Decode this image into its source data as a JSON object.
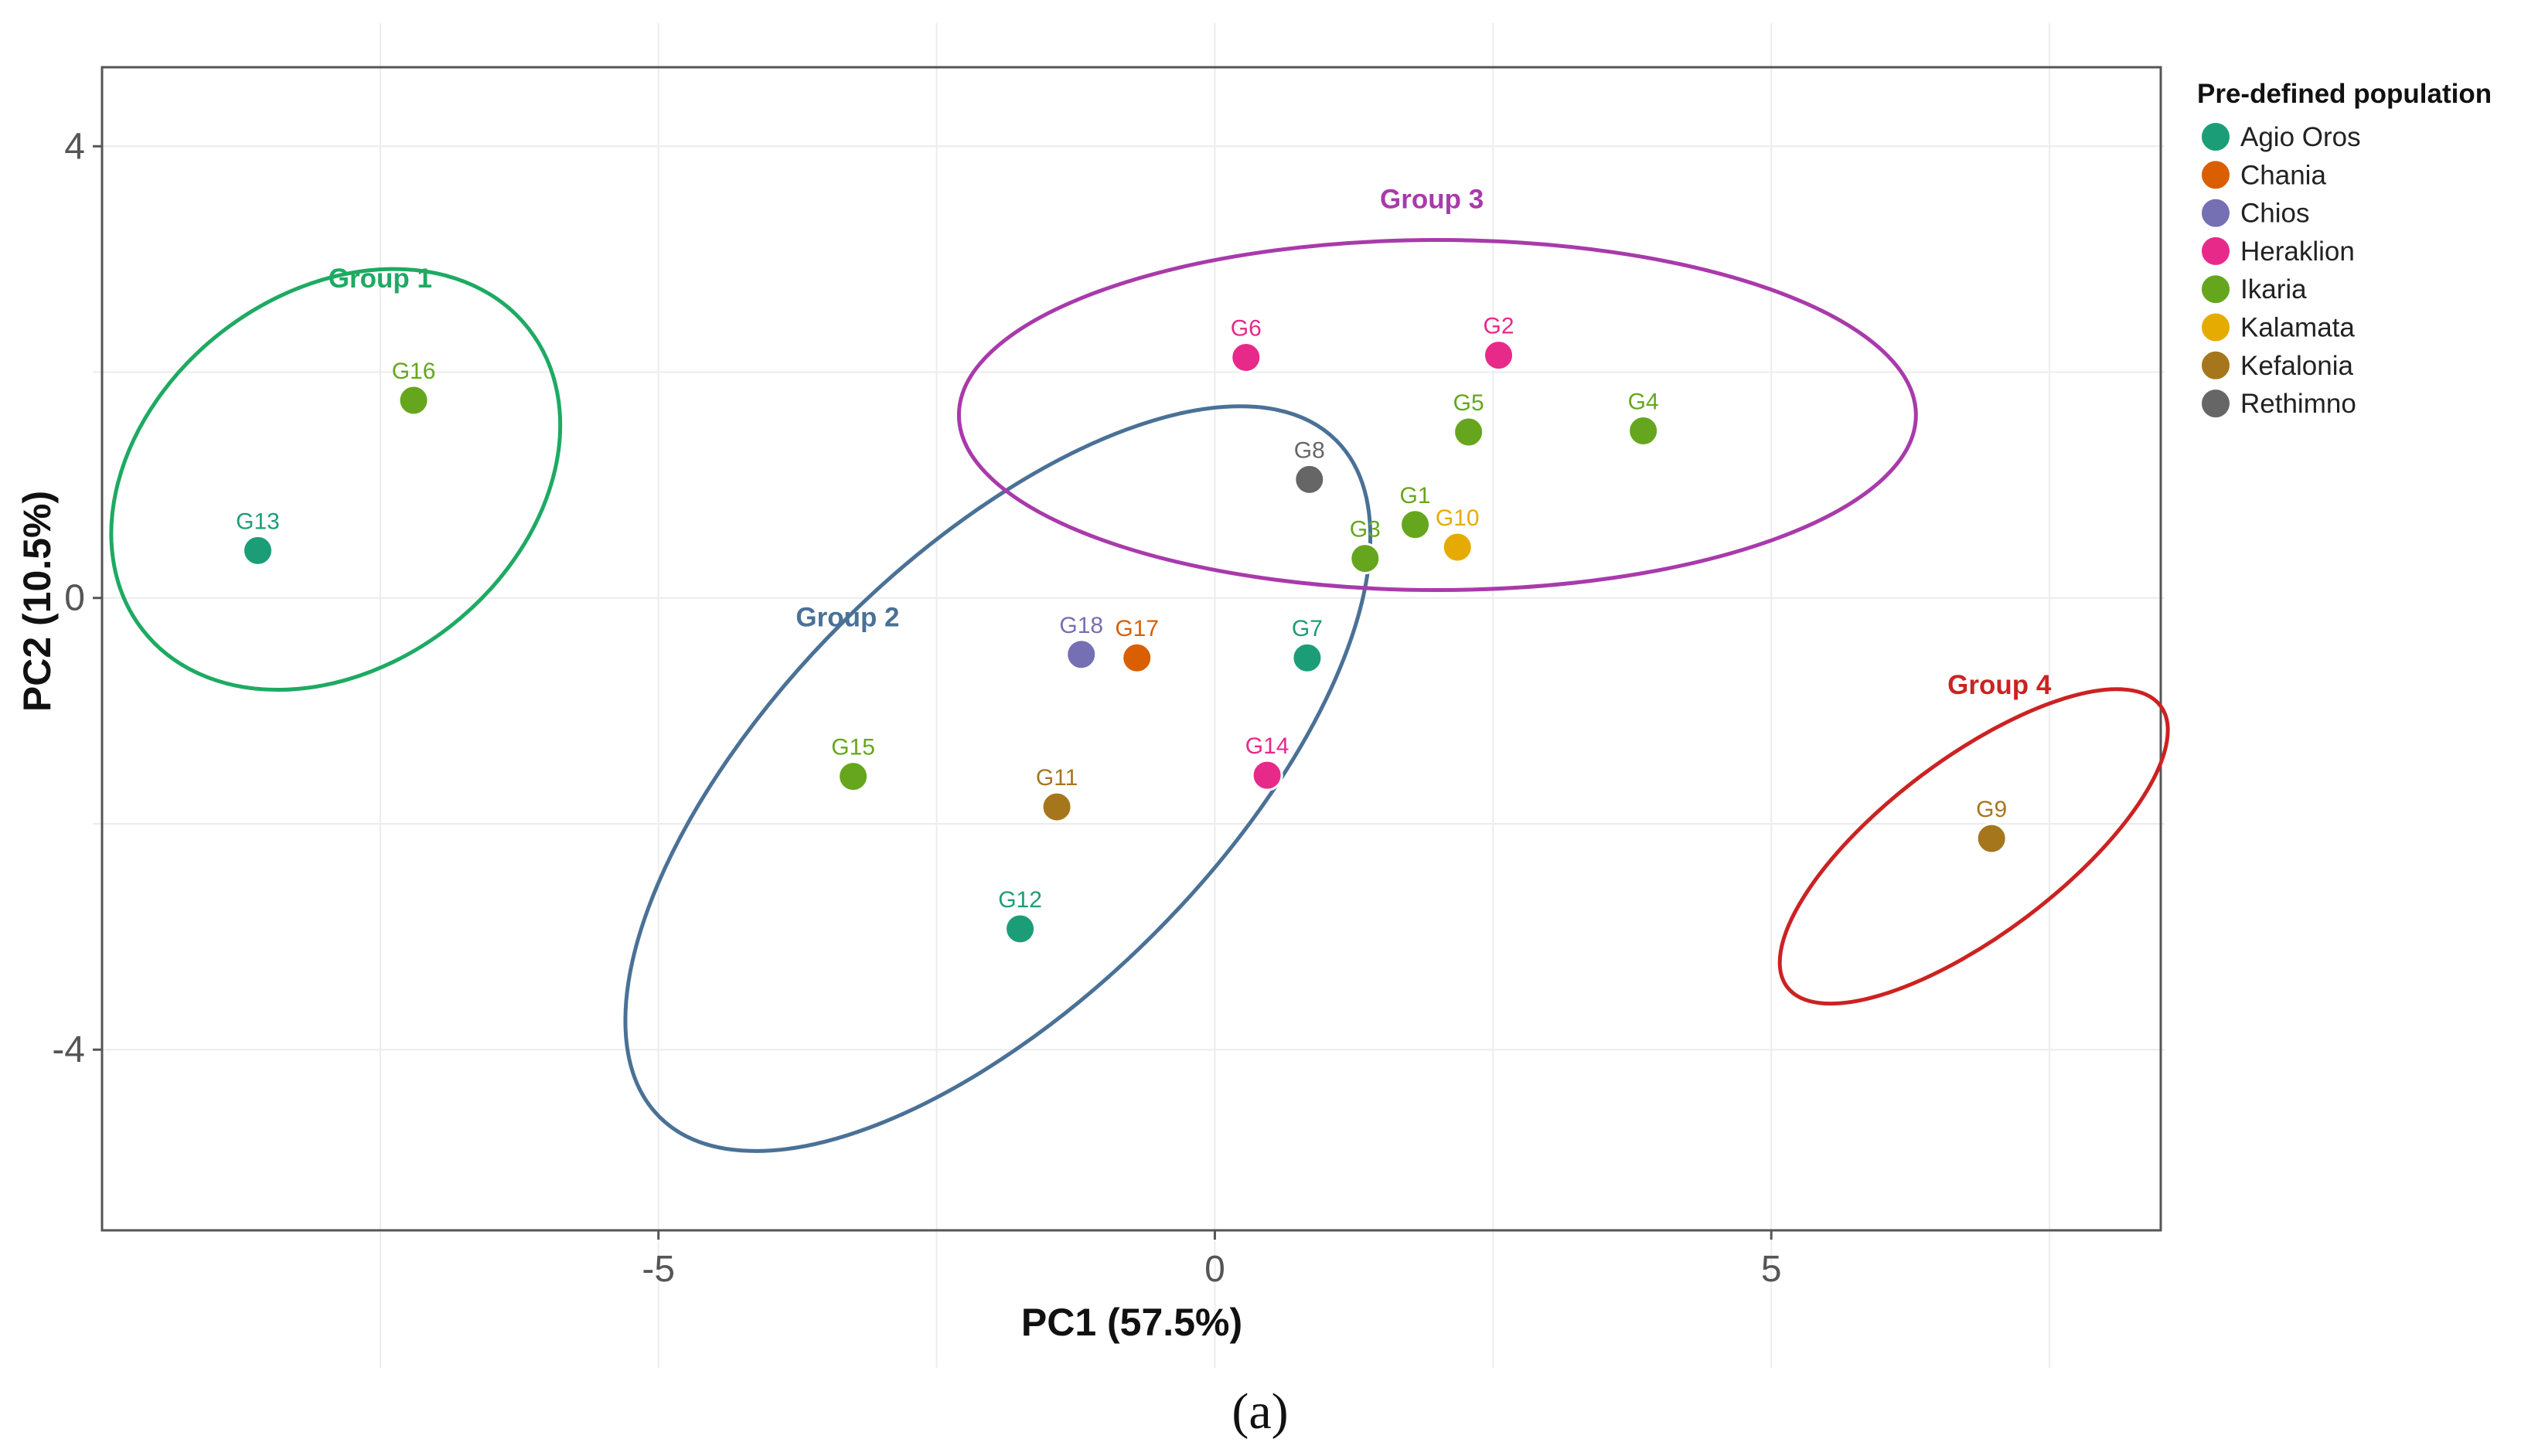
{
  "chart_data": {
    "type": "scatter",
    "xlabel": "PC1 (57.5%)",
    "ylabel": "PC2 (10.5%)",
    "xlim": [
      -10,
      8.5
    ],
    "ylim": [
      -5.6,
      4.7
    ],
    "xticks": [
      -5,
      0,
      5
    ],
    "xtick_labels": [
      "-5",
      "0",
      "5"
    ],
    "yticks": [
      -4,
      0,
      4
    ],
    "ytick_labels": [
      "-4",
      "0",
      "4"
    ],
    "grid": true,
    "legend_title": "Pre-defined population",
    "legend_position": "right",
    "caption": "(a)",
    "populations": [
      {
        "name": "Agio Oros",
        "color": "#1B9E77"
      },
      {
        "name": "Chania",
        "color": "#D95F02"
      },
      {
        "name": "Chios",
        "color": "#7570B3"
      },
      {
        "name": "Heraklion",
        "color": "#E7298A"
      },
      {
        "name": "Ikaria",
        "color": "#66A61E"
      },
      {
        "name": "Kalamata",
        "color": "#E6AB02"
      },
      {
        "name": "Kefalonia",
        "color": "#A6761D"
      },
      {
        "name": "Rethimno",
        "color": "#666666"
      }
    ],
    "points": [
      {
        "label": "G1",
        "population": "Ikaria",
        "x": 1.8,
        "y": 0.65
      },
      {
        "label": "G2",
        "population": "Heraklion",
        "x": 2.55,
        "y": 2.15
      },
      {
        "label": "G3",
        "population": "Ikaria",
        "x": 1.35,
        "y": 0.35
      },
      {
        "label": "G4",
        "population": "Ikaria",
        "x": 3.85,
        "y": 1.48
      },
      {
        "label": "G5",
        "population": "Ikaria",
        "x": 2.28,
        "y": 1.47
      },
      {
        "label": "G6",
        "population": "Heraklion",
        "x": 0.28,
        "y": 2.13
      },
      {
        "label": "G7",
        "population": "Agio Oros",
        "x": 0.83,
        "y": -0.53
      },
      {
        "label": "G8",
        "population": "Rethimno",
        "x": 0.85,
        "y": 1.05
      },
      {
        "label": "G9",
        "population": "Kefalonia",
        "x": 6.98,
        "y": -2.13
      },
      {
        "label": "G10",
        "population": "Kalamata",
        "x": 2.18,
        "y": 0.45
      },
      {
        "label": "G11",
        "population": "Kefalonia",
        "x": -1.42,
        "y": -1.85
      },
      {
        "label": "G12",
        "population": "Agio Oros",
        "x": -1.75,
        "y": -2.93
      },
      {
        "label": "G13",
        "population": "Agio Oros",
        "x": -8.6,
        "y": 0.42
      },
      {
        "label": "G14",
        "population": "Heraklion",
        "x": 0.47,
        "y": -1.57
      },
      {
        "label": "G15",
        "population": "Ikaria",
        "x": -3.25,
        "y": -1.58
      },
      {
        "label": "G16",
        "population": "Ikaria",
        "x": -7.2,
        "y": 1.75
      },
      {
        "label": "G17",
        "population": "Chania",
        "x": -0.7,
        "y": -0.53
      },
      {
        "label": "G18",
        "population": "Chios",
        "x": -1.2,
        "y": -0.5
      }
    ],
    "groups": [
      {
        "name": "Group 1",
        "color": "#1DAA62",
        "cx": -7.9,
        "cy": 1.05,
        "rx": 2.2,
        "ry": 1.65,
        "angle": -38,
        "label_x": -7.5,
        "label_y": 2.75
      },
      {
        "name": "Group 2",
        "color": "#4A7196",
        "cx": -1.95,
        "cy": -1.6,
        "rx": 4.3,
        "ry": 1.95,
        "angle": -45,
        "label_x": -3.3,
        "label_y": -0.25
      },
      {
        "name": "Group 3",
        "color": "#A93AAB",
        "cx": 2.0,
        "cy": 1.62,
        "rx": 4.3,
        "ry": 1.55,
        "angle": 0,
        "label_x": 1.95,
        "label_y": 3.45
      },
      {
        "name": "Group 4",
        "color": "#CC2222",
        "cx": 6.82,
        "cy": -2.2,
        "rx": 2.1,
        "ry": 0.78,
        "angle": -37,
        "label_x": 7.05,
        "label_y": -0.85
      }
    ]
  }
}
